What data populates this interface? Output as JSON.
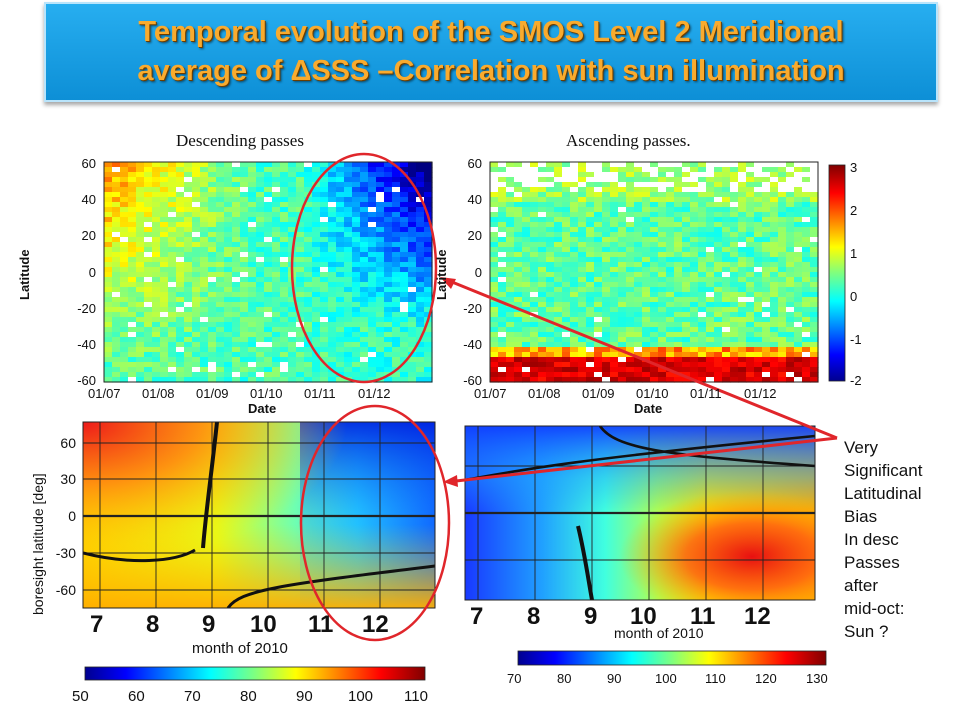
{
  "title": {
    "line1": "Temporal evolution of the SMOS Level 2 Meridional",
    "line2": "average of ΔSSS –Correlation with sun illumination"
  },
  "panels": {
    "descending": {
      "caption": "Descending passes",
      "ylabel": "Latitude",
      "xlabel": "Date",
      "yticks": [
        "60",
        "40",
        "20",
        "0",
        "-20",
        "-40",
        "-60"
      ],
      "xticks": [
        "01/07",
        "01/08",
        "01/09",
        "01/10",
        "01/11",
        "01/12"
      ]
    },
    "ascending": {
      "caption": "Ascending passes.",
      "ylabel": "Latitude",
      "xlabel": "Date",
      "yticks": [
        "60",
        "40",
        "20",
        "0",
        "-20",
        "-40",
        "-60"
      ],
      "xticks": [
        "01/07",
        "01/08",
        "01/09",
        "01/10",
        "01/11",
        "01/12"
      ],
      "colorbar_ticks": [
        "3",
        "2",
        "1",
        "0",
        "-1",
        "-2"
      ]
    },
    "model_left": {
      "ylabel": "boresight latitude [deg]",
      "yticks": [
        "60",
        "30",
        "0",
        "-30",
        "-60"
      ],
      "xticks": [
        "7",
        "8",
        "9",
        "10",
        "11",
        "12"
      ],
      "xlabel": "month of 2010",
      "colorbar_ticks": [
        "50",
        "60",
        "70",
        "80",
        "90",
        "100",
        "110"
      ]
    },
    "model_right": {
      "xticks": [
        "7",
        "8",
        "9",
        "10",
        "11",
        "12"
      ],
      "xlabel": "month of 2010",
      "colorbar_ticks": [
        "70",
        "80",
        "90",
        "100",
        "110",
        "120",
        "130"
      ]
    }
  },
  "note": {
    "lines": [
      "Very",
      "Significant",
      "Latitudinal",
      "Bias",
      "In desc",
      "Passes",
      "after",
      "mid-oct:",
      "Sun ?"
    ]
  },
  "colors": {
    "banner": "#18a0e6",
    "title_text": "#f9ab2e",
    "annotation": "#e0262b"
  }
}
